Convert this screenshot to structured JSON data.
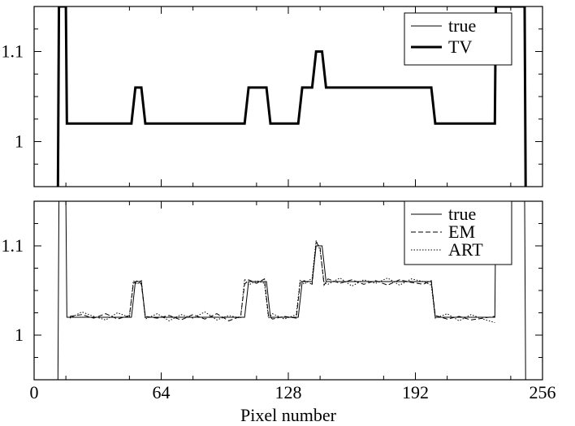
{
  "chart_data": [
    {
      "type": "line",
      "xlim": [
        0,
        256
      ],
      "ylim": [
        0.95,
        1.15
      ],
      "yticks": [
        1,
        1.1
      ],
      "ytick_labels": [
        "1",
        "1.1"
      ],
      "grid": false,
      "legend_position": "top-right",
      "series": [
        {
          "name": "true",
          "style": "thin-solid",
          "color": "#000000",
          "x": [
            12,
            12.5,
            16,
            16.5,
            49,
            51,
            54,
            56,
            106,
            108,
            117,
            119,
            133,
            135,
            140,
            142,
            145,
            147,
            200,
            202,
            232,
            232.5,
            247,
            247.5
          ],
          "y": [
            0.95,
            1.15,
            1.15,
            1.02,
            1.02,
            1.06,
            1.06,
            1.02,
            1.02,
            1.06,
            1.06,
            1.02,
            1.02,
            1.06,
            1.06,
            1.1,
            1.1,
            1.06,
            1.06,
            1.02,
            1.02,
            1.15,
            1.15,
            0.95
          ]
        },
        {
          "name": "TV",
          "style": "thick-solid",
          "color": "#000000",
          "x": [
            12,
            12.5,
            16,
            16.5,
            49,
            51,
            54,
            56,
            106,
            108,
            117,
            119,
            133,
            135,
            140,
            142,
            145,
            147,
            200,
            202,
            232,
            232.5,
            247,
            247.5
          ],
          "y": [
            0.95,
            1.15,
            1.15,
            1.02,
            1.02,
            1.06,
            1.06,
            1.02,
            1.02,
            1.06,
            1.06,
            1.02,
            1.02,
            1.06,
            1.06,
            1.1,
            1.1,
            1.06,
            1.06,
            1.02,
            1.02,
            1.15,
            1.15,
            0.95
          ]
        }
      ]
    },
    {
      "type": "line",
      "xlim": [
        0,
        256
      ],
      "ylim": [
        0.95,
        1.15
      ],
      "xticks": [
        0,
        64,
        128,
        192,
        256
      ],
      "xtick_labels": [
        "0",
        "64",
        "128",
        "192",
        "256"
      ],
      "yticks": [
        1,
        1.1
      ],
      "ytick_labels": [
        "1",
        "1.1"
      ],
      "xlabel": "Pixel number",
      "grid": false,
      "legend_position": "top-right",
      "series": [
        {
          "name": "true",
          "style": "thin-solid",
          "color": "#000000",
          "x": [
            12,
            12.5,
            16,
            16.5,
            49,
            51,
            54,
            56,
            106,
            108,
            117,
            119,
            133,
            135,
            140,
            142,
            145,
            147,
            200,
            202,
            232,
            232.5,
            247,
            247.5
          ],
          "y": [
            0.95,
            1.15,
            1.15,
            1.02,
            1.02,
            1.06,
            1.06,
            1.02,
            1.02,
            1.06,
            1.06,
            1.02,
            1.02,
            1.06,
            1.06,
            1.1,
            1.1,
            1.06,
            1.06,
            1.02,
            1.02,
            1.15,
            1.15,
            0.95
          ]
        },
        {
          "name": "EM",
          "style": "dashed",
          "color": "#000000",
          "x": [
            18,
            24,
            30,
            36,
            42,
            48,
            50,
            52,
            54,
            56,
            62,
            68,
            74,
            80,
            86,
            92,
            98,
            104,
            106,
            108,
            112,
            116,
            118,
            120,
            126,
            132,
            134,
            136,
            140,
            142,
            144,
            146,
            148,
            154,
            160,
            166,
            172,
            178,
            184,
            190,
            196,
            200,
            202,
            208,
            214,
            220,
            226,
            232
          ],
          "y": [
            1.021,
            1.023,
            1.019,
            1.024,
            1.018,
            1.022,
            1.058,
            1.061,
            1.057,
            1.021,
            1.019,
            1.022,
            1.017,
            1.023,
            1.018,
            1.024,
            1.016,
            1.021,
            1.057,
            1.062,
            1.058,
            1.063,
            1.022,
            1.018,
            1.021,
            1.019,
            1.059,
            1.061,
            1.057,
            1.104,
            1.098,
            1.056,
            1.063,
            1.058,
            1.062,
            1.057,
            1.061,
            1.056,
            1.062,
            1.059,
            1.057,
            1.061,
            1.022,
            1.018,
            1.021,
            1.017,
            1.019,
            1.021
          ]
        },
        {
          "name": "ART",
          "style": "dotted",
          "color": "#000000",
          "x": [
            18,
            24,
            30,
            36,
            42,
            48,
            50,
            52,
            54,
            56,
            62,
            68,
            74,
            80,
            86,
            92,
            98,
            104,
            106,
            108,
            112,
            116,
            118,
            120,
            126,
            132,
            134,
            136,
            140,
            142,
            144,
            146,
            148,
            154,
            160,
            166,
            172,
            178,
            184,
            190,
            196,
            200,
            202,
            208,
            214,
            220,
            226,
            232
          ],
          "y": [
            1.019,
            1.026,
            1.021,
            1.017,
            1.025,
            1.02,
            1.061,
            1.057,
            1.062,
            1.018,
            1.024,
            1.016,
            1.023,
            1.019,
            1.026,
            1.017,
            1.022,
            1.019,
            1.063,
            1.056,
            1.061,
            1.058,
            1.019,
            1.024,
            1.018,
            1.023,
            1.062,
            1.057,
            1.064,
            1.106,
            1.095,
            1.059,
            1.057,
            1.064,
            1.055,
            1.062,
            1.058,
            1.064,
            1.056,
            1.063,
            1.06,
            1.056,
            1.019,
            1.024,
            1.016,
            1.023,
            1.018,
            1.014
          ]
        }
      ]
    }
  ]
}
